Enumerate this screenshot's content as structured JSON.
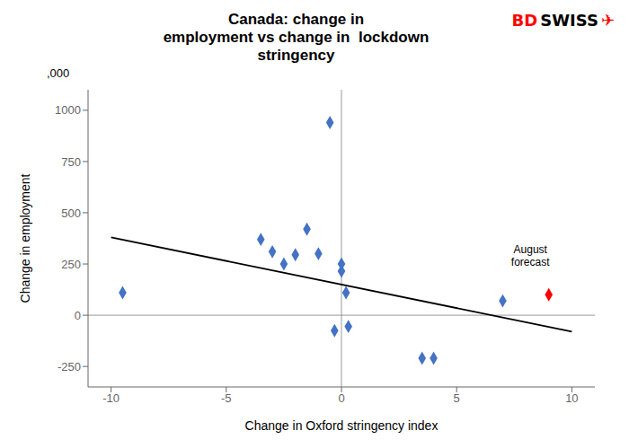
{
  "chart_data": {
    "type": "scatter",
    "title": "Canada: change in\nemployment vs change in  lockdown\nstringency",
    "x_label": "Change in Oxford stringency index",
    "y_label": "Change in employment",
    "y_unit_label": ",000",
    "series": [
      {
        "type": "scatter",
        "color": "#4472C4",
        "marker": "diamond",
        "x": [
          -9.5,
          -3.5,
          -3.0,
          -2.5,
          -2.0,
          -1.5,
          -1.0,
          -0.5,
          -0.3,
          0.0,
          0.0,
          0.2,
          0.3,
          3.5,
          4.0,
          7.0
        ],
        "values": [
          110,
          370,
          310,
          250,
          295,
          420,
          300,
          940,
          -75,
          215,
          250,
          110,
          -55,
          -210,
          -210,
          70
        ]
      },
      {
        "type": "scatter",
        "color": "#FF0000",
        "marker": "diamond",
        "x": [
          9.0
        ],
        "values": [
          100
        ]
      },
      {
        "type": "line",
        "color": "#000000",
        "x": [
          -10,
          10
        ],
        "values": [
          380,
          -80
        ]
      }
    ],
    "annotations": [
      {
        "text": "August\nforecast",
        "x": 8.2,
        "y": 230
      }
    ],
    "logo": [
      {
        "text": "BD",
        "color": "#FF0000"
      },
      {
        "text": "SWISS",
        "color": "#000000"
      },
      {
        "text": "✈",
        "color": "#FF0000"
      }
    ],
    "xlim": [
      -11,
      11
    ],
    "ylim": [
      -350,
      1100
    ],
    "xticks": [
      -10,
      -5,
      0,
      5,
      10
    ],
    "yticks": [
      -250,
      0,
      250,
      500,
      750,
      1000
    ],
    "grid": false
  }
}
